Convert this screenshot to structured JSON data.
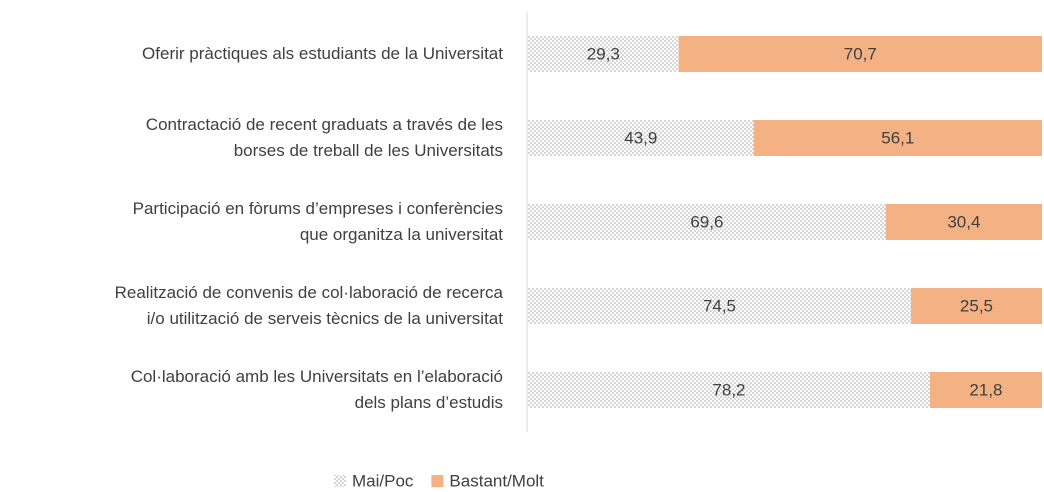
{
  "chart_data": {
    "type": "stacked-barh",
    "categories": [
      "Oferir pràctiques als estudiants de la Universitat",
      "Contractació de recent graduats a través de les\nborses de treball de les Universitats",
      "Participació en fòrums d’empreses i conferències\nque organitza la universitat",
      "Realització de convenis de col·laboració de recerca\ni/o utilització de serveis tècnics de la universitat",
      "Col·laboració amb les Universitats en l’elaboració\ndels plans d’estudis"
    ],
    "series": [
      {
        "name": "Mai/Poc",
        "color": "#a6a6a6",
        "pattern": "dots",
        "values": [
          29.3,
          43.9,
          69.6,
          74.5,
          78.2
        ],
        "value_labels": [
          "29,3",
          "43,9",
          "69,6",
          "74,5",
          "78,2"
        ]
      },
      {
        "name": "Bastant/Molt",
        "color": "#f4b183",
        "values": [
          70.7,
          56.1,
          30.4,
          25.5,
          21.8
        ],
        "value_labels": [
          "70,7",
          "56,1",
          "30,4",
          "25,5",
          "21,8"
        ]
      }
    ],
    "xlim": [
      0,
      100
    ],
    "legend": "bottom"
  }
}
